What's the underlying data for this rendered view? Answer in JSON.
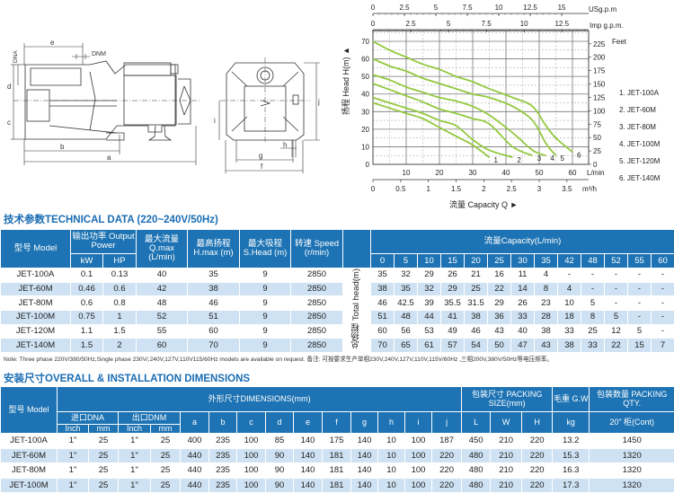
{
  "drawing": {
    "labels": {
      "a": "a",
      "b": "b",
      "c": "c",
      "d": "d",
      "e": "e",
      "f": "f",
      "g": "g",
      "h": "h",
      "i": "i",
      "j": "j",
      "dna": "DNA",
      "dnm": "DNM"
    }
  },
  "chart_data": {
    "type": "line",
    "title": "",
    "xlabel": "流量 Capacity Q ►",
    "ylabel": "扬程 Head H(m) ▲",
    "x_unit": "L/min",
    "xlim": [
      0,
      60
    ],
    "ylim": [
      0,
      76
    ],
    "grid": true,
    "x_ticks": [
      10,
      20,
      30,
      40,
      50,
      60
    ],
    "y_ticks": [
      0,
      10,
      20,
      30,
      40,
      50,
      60,
      70
    ],
    "right_axis": {
      "unit": "Feet",
      "ticks": [
        "0",
        "25",
        "50",
        "75",
        "100",
        "125",
        "150",
        "175",
        "200",
        "225"
      ]
    },
    "top_axes": [
      {
        "unit": "USg.p.m",
        "ticks": [
          "0",
          "2.5",
          "5",
          "7.5",
          "10",
          "12.5",
          "15"
        ]
      },
      {
        "unit": "Imp g.p.m.",
        "ticks": [
          "0",
          "2.5",
          "5",
          "7.5",
          "10",
          "12.5"
        ]
      }
    ],
    "bottom_axis": {
      "unit": "m³/h",
      "ticks": [
        "0",
        "0.5",
        "1",
        "1.5",
        "2",
        "2.5",
        "3",
        "3.5"
      ]
    },
    "legend_position": "right",
    "series_color": "#93c83e",
    "series": [
      {
        "name": "1. JET-100A",
        "label": "1",
        "x": [
          0,
          5,
          10,
          15,
          20,
          25,
          30,
          35
        ],
        "y": [
          35,
          32,
          29,
          26,
          21,
          16,
          11,
          4
        ]
      },
      {
        "name": "2. JET-60M",
        "label": "2",
        "x": [
          0,
          5,
          10,
          15,
          20,
          25,
          30,
          35,
          42
        ],
        "y": [
          38,
          35,
          32,
          29,
          25,
          22,
          14,
          8,
          4
        ]
      },
      {
        "name": "3. JET-80M",
        "label": "3",
        "x": [
          0,
          5,
          10,
          15,
          20,
          25,
          30,
          35,
          42,
          48
        ],
        "y": [
          46,
          42.5,
          39,
          35.5,
          31.5,
          29,
          26,
          23,
          10,
          5
        ]
      },
      {
        "name": "4. JET-100M",
        "label": "4",
        "x": [
          0,
          5,
          10,
          15,
          20,
          25,
          30,
          35,
          42,
          48,
          52
        ],
        "y": [
          51,
          48,
          44,
          41,
          38,
          36,
          33,
          28,
          18,
          8,
          5
        ]
      },
      {
        "name": "5. JET-120M",
        "label": "5",
        "x": [
          0,
          5,
          10,
          15,
          20,
          25,
          30,
          35,
          42,
          48,
          52,
          55
        ],
        "y": [
          60,
          56,
          53,
          49,
          46,
          43,
          40,
          38,
          33,
          25,
          12,
          5
        ]
      },
      {
        "name": "6. JET-140M",
        "label": "6",
        "x": [
          0,
          5,
          10,
          15,
          20,
          25,
          30,
          35,
          42,
          48,
          52,
          55,
          60
        ],
        "y": [
          70,
          65,
          61,
          57,
          54,
          50,
          47,
          43,
          38,
          33,
          22,
          15,
          7
        ]
      }
    ]
  },
  "tech": {
    "title": "技术参数TECHNICAL DATA (220~240V/50Hz)",
    "headers": {
      "model": "型号 Model",
      "power": "输出功率 Output Power",
      "kw": "kW",
      "hp": "HP",
      "qmax": "最大流量 Q.max (L/min)",
      "hmax": "最高扬程 H.max (m)",
      "shead": "最大吸程 S.Head (m)",
      "speed": "转速 Speed (r/min)",
      "capacity": "流量Capacity(L/min)",
      "total_head": "总扬程 Total head(m)"
    },
    "capacities": [
      "0",
      "5",
      "10",
      "15",
      "20",
      "25",
      "30",
      "35",
      "42",
      "48",
      "52",
      "55",
      "60"
    ],
    "rows": [
      {
        "model": "JET-100A",
        "kw": "0.1",
        "hp": "0.13",
        "qmax": "40",
        "hmax": "35",
        "shead": "9",
        "speed": "2850",
        "heads": [
          "35",
          "32",
          "29",
          "26",
          "21",
          "16",
          "11",
          "4",
          "-",
          "-",
          "-",
          "-",
          "-"
        ]
      },
      {
        "model": "JET-60M",
        "kw": "0.46",
        "hp": "0.6",
        "qmax": "42",
        "hmax": "38",
        "shead": "9",
        "speed": "2850",
        "heads": [
          "38",
          "35",
          "32",
          "29",
          "25",
          "22",
          "14",
          "8",
          "4",
          "-",
          "-",
          "-",
          "-"
        ]
      },
      {
        "model": "JET-80M",
        "kw": "0.6",
        "hp": "0.8",
        "qmax": "48",
        "hmax": "46",
        "shead": "9",
        "speed": "2850",
        "heads": [
          "46",
          "42.5",
          "39",
          "35.5",
          "31.5",
          "29",
          "26",
          "23",
          "10",
          "5",
          "-",
          "-",
          "-"
        ]
      },
      {
        "model": "JET-100M",
        "kw": "0.75",
        "hp": "1",
        "qmax": "52",
        "hmax": "51",
        "shead": "9",
        "speed": "2850",
        "heads": [
          "51",
          "48",
          "44",
          "41",
          "38",
          "36",
          "33",
          "28",
          "18",
          "8",
          "5",
          "-",
          "-"
        ]
      },
      {
        "model": "JET-120M",
        "kw": "1.1",
        "hp": "1.5",
        "qmax": "55",
        "hmax": "60",
        "shead": "9",
        "speed": "2850",
        "heads": [
          "60",
          "56",
          "53",
          "49",
          "46",
          "43",
          "40",
          "38",
          "33",
          "25",
          "12",
          "5",
          "-"
        ]
      },
      {
        "model": "JET-140M",
        "kw": "1.5",
        "hp": "2",
        "qmax": "60",
        "hmax": "70",
        "shead": "9",
        "speed": "2850",
        "heads": [
          "70",
          "65",
          "61",
          "57",
          "54",
          "50",
          "47",
          "43",
          "38",
          "33",
          "22",
          "15",
          "7"
        ]
      }
    ],
    "note": "Note: Three phase 220V/380/50Hz,Single phase 230V/,240V,127V,110V115/60Hz models are available on request. 备注: 可按要求生产单相230V,240V,127V,110V,115V/60Hz ,三相200V,380V/50Hz等电压频率。"
  },
  "dims": {
    "title": "安装尺寸OVERALL & INSTALLATION DIMENSIONS",
    "headers": {
      "model": "型号 Model",
      "dimensions": "外形尺寸DIMENSIONS(mm)",
      "packing": "包装尺寸 PACKING SIZE(mm)",
      "gw": "毛重 G.W",
      "qty": "包装数量 PACKING QTY.",
      "dna": "进口DNA",
      "dnm": "出口DNM",
      "inch": "Inch",
      "mm": "mm",
      "letters": [
        "a",
        "b",
        "c",
        "d",
        "e",
        "f",
        "g",
        "h",
        "i",
        "j"
      ],
      "pack_letters": [
        "L",
        "W",
        "H"
      ],
      "kg": "kg",
      "cont": "20\" 柜(Cont)"
    },
    "rows": [
      {
        "model": "JET-100A",
        "vals": [
          "1\"",
          "25",
          "1\"",
          "25",
          "400",
          "235",
          "100",
          "85",
          "140",
          "175",
          "140",
          "10",
          "100",
          "187",
          "450",
          "210",
          "220",
          "13.2",
          "1450"
        ]
      },
      {
        "model": "JET-60M",
        "vals": [
          "1\"",
          "25",
          "1\"",
          "25",
          "440",
          "235",
          "100",
          "90",
          "140",
          "181",
          "140",
          "10",
          "100",
          "220",
          "480",
          "210",
          "220",
          "15.3",
          "1320"
        ]
      },
      {
        "model": "JET-80M",
        "vals": [
          "1\"",
          "25",
          "1\"",
          "25",
          "440",
          "235",
          "100",
          "90",
          "140",
          "181",
          "140",
          "10",
          "100",
          "220",
          "480",
          "210",
          "220",
          "16.3",
          "1320"
        ]
      },
      {
        "model": "JET-100M",
        "vals": [
          "1\"",
          "25",
          "1\"",
          "25",
          "440",
          "235",
          "100",
          "90",
          "140",
          "181",
          "140",
          "10",
          "100",
          "220",
          "480",
          "210",
          "220",
          "17.3",
          "1320"
        ]
      }
    ]
  }
}
